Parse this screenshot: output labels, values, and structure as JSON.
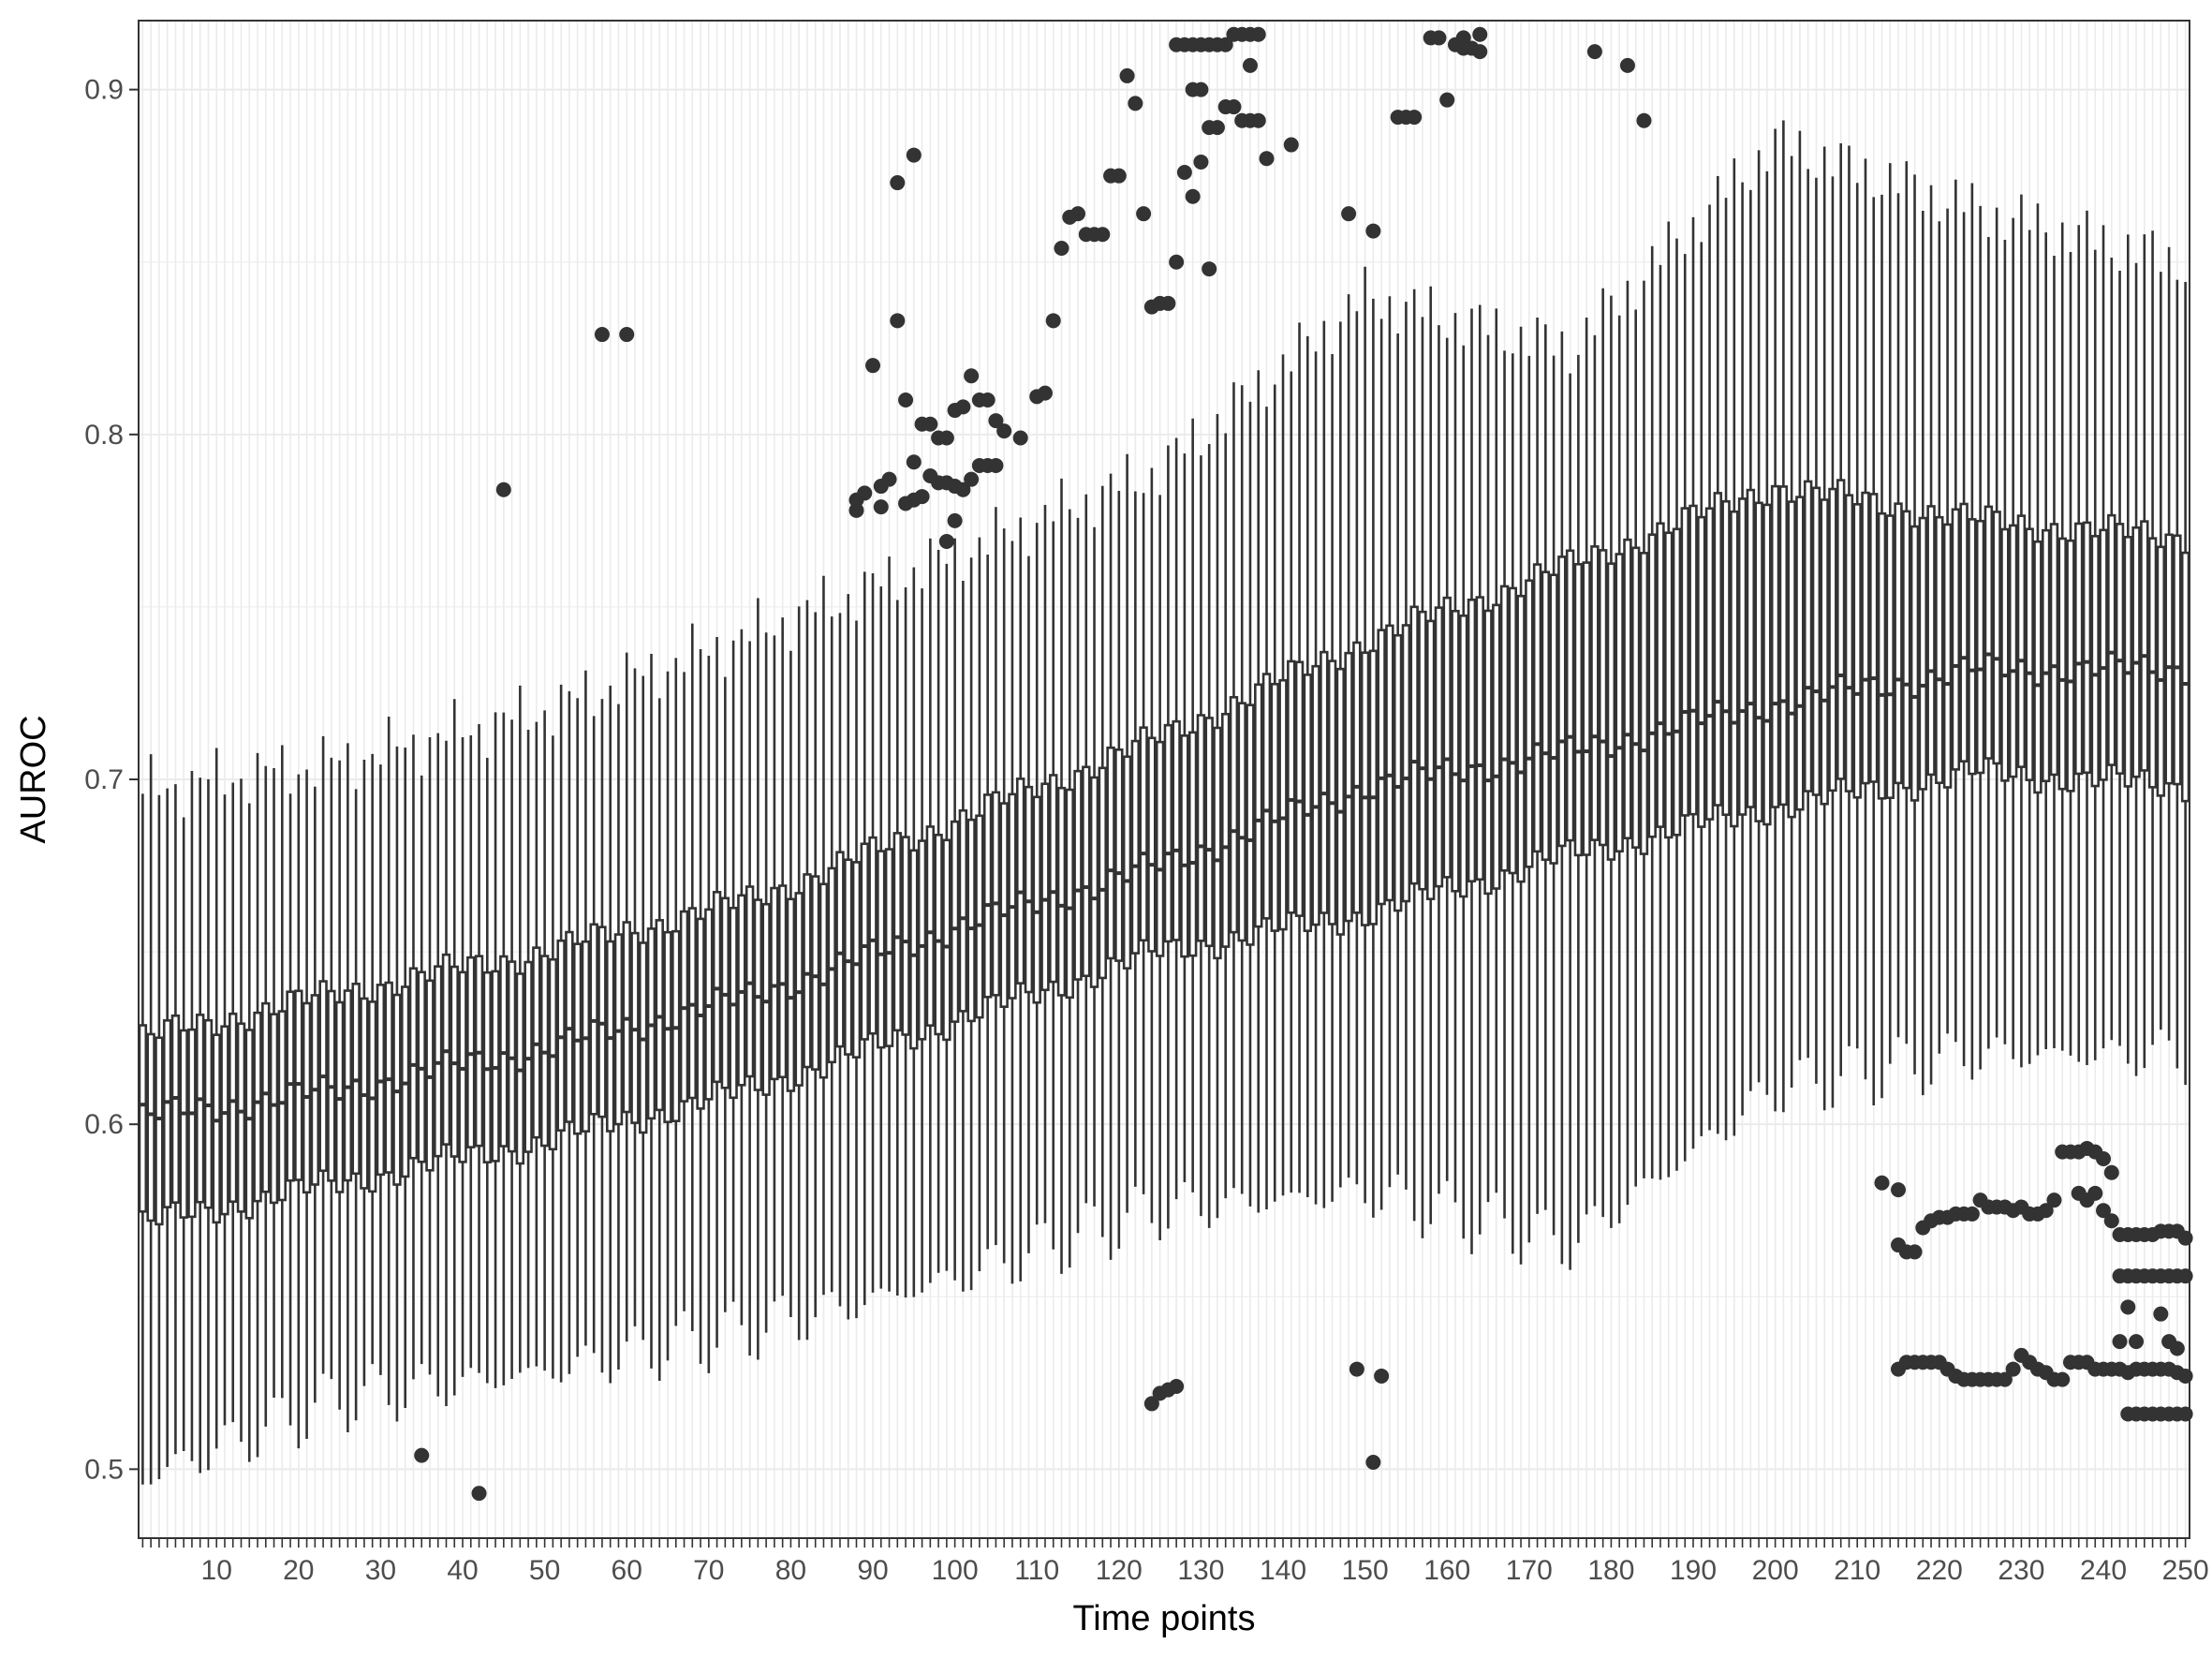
{
  "chart_data": {
    "type": "boxplot",
    "xlabel": "Time points",
    "ylabel": "AUROC",
    "x_range": [
      1,
      250
    ],
    "ylim": [
      0.48,
      0.92
    ],
    "x_ticks": [
      10,
      20,
      30,
      40,
      50,
      60,
      70,
      80,
      90,
      100,
      110,
      120,
      130,
      140,
      150,
      160,
      170,
      180,
      190,
      200,
      210,
      220,
      230,
      240,
      250
    ],
    "y_ticks": [
      0.5,
      0.6,
      0.7,
      0.8,
      0.9
    ],
    "grid": true,
    "theme": "bw",
    "n_boxes": 250,
    "keypoints": {
      "t": [
        1,
        25,
        50,
        75,
        100,
        125,
        150,
        175,
        200,
        225,
        250
      ],
      "median": [
        0.602,
        0.61,
        0.622,
        0.637,
        0.657,
        0.675,
        0.698,
        0.708,
        0.722,
        0.732,
        0.732
      ],
      "q1": [
        0.571,
        0.583,
        0.595,
        0.61,
        0.63,
        0.65,
        0.661,
        0.678,
        0.692,
        0.702,
        0.698
      ],
      "q3": [
        0.625,
        0.638,
        0.65,
        0.665,
        0.688,
        0.712,
        0.74,
        0.762,
        0.785,
        0.775,
        0.77
      ],
      "lower": [
        0.497,
        0.52,
        0.528,
        0.54,
        0.555,
        0.575,
        0.58,
        0.565,
        0.61,
        0.62,
        0.62
      ],
      "upper": [
        0.697,
        0.705,
        0.72,
        0.742,
        0.765,
        0.79,
        0.84,
        0.825,
        0.885,
        0.865,
        0.85
      ]
    },
    "outliers": [
      [
        35,
        0.504
      ],
      [
        42,
        0.493
      ],
      [
        45,
        0.784
      ],
      [
        57,
        0.829
      ],
      [
        60,
        0.829
      ],
      [
        88,
        0.778
      ],
      [
        88,
        0.781
      ],
      [
        89,
        0.783
      ],
      [
        90,
        0.82
      ],
      [
        91,
        0.779
      ],
      [
        91,
        0.785
      ],
      [
        92,
        0.787
      ],
      [
        93,
        0.873
      ],
      [
        93,
        0.833
      ],
      [
        94,
        0.78
      ],
      [
        94,
        0.81
      ],
      [
        95,
        0.881
      ],
      [
        95,
        0.792
      ],
      [
        95,
        0.781
      ],
      [
        96,
        0.803
      ],
      [
        96,
        0.782
      ],
      [
        97,
        0.803
      ],
      [
        97,
        0.788
      ],
      [
        98,
        0.786
      ],
      [
        98,
        0.799
      ],
      [
        99,
        0.769
      ],
      [
        99,
        0.799
      ],
      [
        99,
        0.786
      ],
      [
        100,
        0.775
      ],
      [
        100,
        0.807
      ],
      [
        100,
        0.785
      ],
      [
        101,
        0.808
      ],
      [
        101,
        0.784
      ],
      [
        102,
        0.817
      ],
      [
        102,
        0.787
      ],
      [
        103,
        0.81
      ],
      [
        103,
        0.791
      ],
      [
        104,
        0.81
      ],
      [
        104,
        0.791
      ],
      [
        105,
        0.804
      ],
      [
        105,
        0.791
      ],
      [
        106,
        0.801
      ],
      [
        108,
        0.799
      ],
      [
        110,
        0.811
      ],
      [
        111,
        0.812
      ],
      [
        112,
        0.833
      ],
      [
        113,
        0.854
      ],
      [
        114,
        0.863
      ],
      [
        115,
        0.864
      ],
      [
        116,
        0.858
      ],
      [
        117,
        0.858
      ],
      [
        118,
        0.858
      ],
      [
        119,
        0.875
      ],
      [
        120,
        0.875
      ],
      [
        121,
        0.904
      ],
      [
        122,
        0.896
      ],
      [
        123,
        0.864
      ],
      [
        124,
        0.837
      ],
      [
        124,
        0.519
      ],
      [
        125,
        0.838
      ],
      [
        125,
        0.522
      ],
      [
        126,
        0.838
      ],
      [
        126,
        0.523
      ],
      [
        127,
        0.85
      ],
      [
        127,
        0.524
      ],
      [
        127,
        0.913
      ],
      [
        128,
        0.876
      ],
      [
        128,
        0.913
      ],
      [
        129,
        0.869
      ],
      [
        129,
        0.9
      ],
      [
        129,
        0.913
      ],
      [
        130,
        0.879
      ],
      [
        130,
        0.9
      ],
      [
        130,
        0.913
      ],
      [
        131,
        0.848
      ],
      [
        131,
        0.889
      ],
      [
        131,
        0.913
      ],
      [
        132,
        0.889
      ],
      [
        132,
        0.913
      ],
      [
        133,
        0.895
      ],
      [
        133,
        0.913
      ],
      [
        134,
        0.895
      ],
      [
        134,
        0.916
      ],
      [
        135,
        0.891
      ],
      [
        135,
        0.916
      ],
      [
        136,
        0.907
      ],
      [
        136,
        0.891
      ],
      [
        136,
        0.916
      ],
      [
        137,
        0.891
      ],
      [
        137,
        0.916
      ],
      [
        138,
        0.88
      ],
      [
        141,
        0.884
      ],
      [
        148,
        0.864
      ],
      [
        149,
        0.529
      ],
      [
        151,
        0.859
      ],
      [
        151,
        0.502
      ],
      [
        152,
        0.527
      ],
      [
        154,
        0.892
      ],
      [
        155,
        0.892
      ],
      [
        156,
        0.892
      ],
      [
        158,
        0.915
      ],
      [
        159,
        0.915
      ],
      [
        160,
        0.897
      ],
      [
        161,
        0.913
      ],
      [
        162,
        0.912
      ],
      [
        162,
        0.915
      ],
      [
        163,
        0.912
      ],
      [
        164,
        0.911
      ],
      [
        164,
        0.916
      ],
      [
        178,
        0.911
      ],
      [
        182,
        0.907
      ],
      [
        184,
        0.891
      ],
      [
        213,
        0.583
      ],
      [
        215,
        0.565
      ],
      [
        215,
        0.581
      ],
      [
        216,
        0.563
      ],
      [
        217,
        0.563
      ],
      [
        218,
        0.57
      ],
      [
        219,
        0.572
      ],
      [
        220,
        0.573
      ],
      [
        221,
        0.573
      ],
      [
        222,
        0.574
      ],
      [
        223,
        0.574
      ],
      [
        224,
        0.574
      ],
      [
        225,
        0.578
      ],
      [
        226,
        0.576
      ],
      [
        227,
        0.576
      ],
      [
        228,
        0.576
      ],
      [
        229,
        0.575
      ],
      [
        230,
        0.576
      ],
      [
        231,
        0.574
      ],
      [
        232,
        0.574
      ],
      [
        233,
        0.575
      ],
      [
        234,
        0.578
      ],
      [
        235,
        0.592
      ],
      [
        236,
        0.592
      ],
      [
        237,
        0.58
      ],
      [
        237,
        0.592
      ],
      [
        238,
        0.578
      ],
      [
        238,
        0.593
      ],
      [
        239,
        0.58
      ],
      [
        239,
        0.592
      ],
      [
        240,
        0.575
      ],
      [
        240,
        0.59
      ],
      [
        241,
        0.572
      ],
      [
        241,
        0.586
      ],
      [
        242,
        0.568
      ],
      [
        242,
        0.556
      ],
      [
        243,
        0.568
      ],
      [
        243,
        0.556
      ],
      [
        244,
        0.568
      ],
      [
        244,
        0.556
      ],
      [
        245,
        0.568
      ],
      [
        245,
        0.556
      ],
      [
        246,
        0.568
      ],
      [
        246,
        0.556
      ],
      [
        247,
        0.569
      ],
      [
        247,
        0.556
      ],
      [
        248,
        0.569
      ],
      [
        248,
        0.556
      ],
      [
        249,
        0.569
      ],
      [
        249,
        0.556
      ],
      [
        250,
        0.567
      ],
      [
        250,
        0.556
      ],
      [
        215,
        0.529
      ],
      [
        216,
        0.531
      ],
      [
        217,
        0.531
      ],
      [
        218,
        0.531
      ],
      [
        219,
        0.531
      ],
      [
        220,
        0.531
      ],
      [
        221,
        0.529
      ],
      [
        222,
        0.527
      ],
      [
        223,
        0.526
      ],
      [
        224,
        0.526
      ],
      [
        225,
        0.526
      ],
      [
        226,
        0.526
      ],
      [
        227,
        0.526
      ],
      [
        228,
        0.526
      ],
      [
        229,
        0.529
      ],
      [
        230,
        0.533
      ],
      [
        231,
        0.531
      ],
      [
        232,
        0.529
      ],
      [
        233,
        0.528
      ],
      [
        234,
        0.526
      ],
      [
        235,
        0.526
      ],
      [
        236,
        0.531
      ],
      [
        237,
        0.531
      ],
      [
        238,
        0.531
      ],
      [
        239,
        0.529
      ],
      [
        240,
        0.529
      ],
      [
        241,
        0.529
      ],
      [
        242,
        0.529
      ],
      [
        242,
        0.537
      ],
      [
        243,
        0.528
      ],
      [
        243,
        0.547
      ],
      [
        244,
        0.529
      ],
      [
        244,
        0.537
      ],
      [
        245,
        0.529
      ],
      [
        246,
        0.529
      ],
      [
        247,
        0.529
      ],
      [
        247,
        0.545
      ],
      [
        248,
        0.529
      ],
      [
        248,
        0.537
      ],
      [
        249,
        0.528
      ],
      [
        249,
        0.535
      ],
      [
        250,
        0.527
      ],
      [
        243,
        0.516
      ],
      [
        244,
        0.516
      ],
      [
        245,
        0.516
      ],
      [
        246,
        0.516
      ],
      [
        247,
        0.516
      ],
      [
        248,
        0.516
      ],
      [
        249,
        0.516
      ],
      [
        250,
        0.516
      ]
    ]
  }
}
